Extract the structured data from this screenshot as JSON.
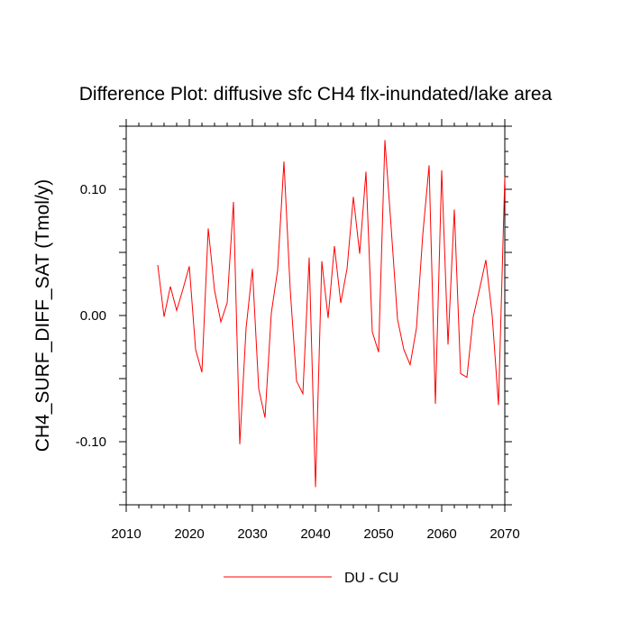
{
  "chart_data": {
    "type": "line",
    "title": "Difference Plot: diffusive sfc CH4 flx-inundated/lake area",
    "xlabel": "",
    "ylabel": "CH4_SURF_DIFF_SAT  (Tmol/y)",
    "xlim": [
      2010,
      2070
    ],
    "ylim": [
      -0.15,
      0.15
    ],
    "xticks": [
      "2010",
      "2020",
      "2030",
      "2040",
      "2050",
      "2060",
      "2070"
    ],
    "yticks": [
      "-0.10",
      "0.00",
      "0.10"
    ],
    "xtick_values": [
      2010,
      2020,
      2030,
      2040,
      2050,
      2060,
      2070
    ],
    "ytick_values": [
      -0.1,
      0.0,
      0.1
    ],
    "grid": false,
    "legend": "bottom-center",
    "series": [
      {
        "name": "DU - CU",
        "color": "#ff0000",
        "x": [
          2015,
          2016,
          2017,
          2018,
          2019,
          2020,
          2021,
          2022,
          2023,
          2024,
          2025,
          2026,
          2027,
          2028,
          2029,
          2030,
          2031,
          2032,
          2033,
          2034,
          2035,
          2036,
          2037,
          2038,
          2039,
          2040,
          2041,
          2042,
          2043,
          2044,
          2045,
          2046,
          2047,
          2048,
          2049,
          2050,
          2051,
          2052,
          2053,
          2054,
          2055,
          2056,
          2057,
          2058,
          2059,
          2060,
          2061,
          2062,
          2063,
          2064,
          2065,
          2066,
          2067,
          2068,
          2069,
          2070
        ],
        "values": [
          0.04,
          -0.001,
          0.023,
          0.004,
          0.021,
          0.039,
          -0.027,
          -0.045,
          0.069,
          0.02,
          -0.005,
          0.01,
          0.09,
          -0.102,
          -0.01,
          0.037,
          -0.058,
          -0.081,
          0.002,
          0.036,
          0.122,
          0.02,
          -0.052,
          -0.062,
          0.046,
          -0.136,
          0.043,
          -0.002,
          0.055,
          0.01,
          0.037,
          0.094,
          0.049,
          0.114,
          -0.013,
          -0.029,
          0.139,
          0.069,
          -0.003,
          -0.027,
          -0.039,
          -0.01,
          0.064,
          0.119,
          -0.07,
          0.115,
          -0.023,
          0.084,
          -0.046,
          -0.049,
          -0.001,
          0.021,
          0.044,
          0.0,
          -0.071,
          0.11
        ]
      }
    ]
  }
}
